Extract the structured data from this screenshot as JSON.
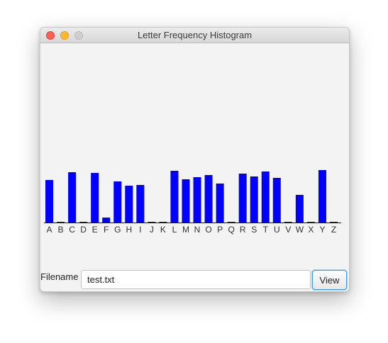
{
  "window": {
    "title": "Letter Frequency Histogram"
  },
  "chart_data": {
    "type": "bar",
    "categories": [
      "A",
      "B",
      "C",
      "D",
      "E",
      "F",
      "G",
      "H",
      "I",
      "J",
      "K",
      "L",
      "M",
      "N",
      "O",
      "P",
      "Q",
      "R",
      "S",
      "T",
      "U",
      "V",
      "W",
      "X",
      "Y",
      "Z"
    ],
    "values": [
      60,
      1,
      71,
      1,
      70,
      7,
      58,
      52,
      53,
      1,
      1,
      73,
      61,
      64,
      67,
      55,
      1,
      69,
      65,
      72,
      63,
      1,
      39,
      1,
      74,
      1
    ],
    "color": "#0000ff",
    "ylim": [
      0,
      100
    ]
  },
  "form": {
    "filename_label": "Filename",
    "filename_value": "test.txt",
    "view_button_label": "View"
  }
}
